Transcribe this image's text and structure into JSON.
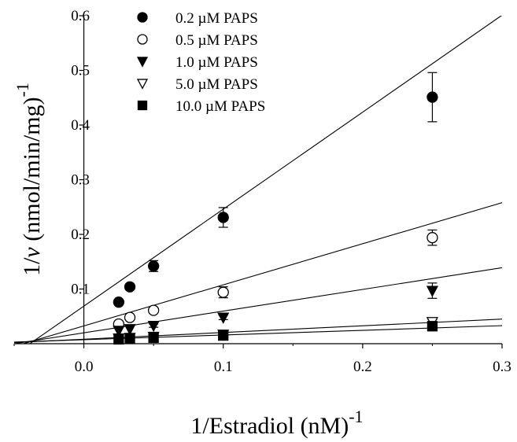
{
  "chart_data": {
    "type": "scatter",
    "title": "",
    "xlabel": {
      "text": "1/Estradiol (nM)",
      "superscript": "-1"
    },
    "ylabel": {
      "prefix": "1/",
      "italic": "v",
      "text": " (nmol/min/mg)",
      "superscript": "-1"
    },
    "xlim": [
      -0.05,
      0.3
    ],
    "ylim": [
      0,
      0.6
    ],
    "x_ticks": [
      0.0,
      0.1,
      0.2,
      0.3
    ],
    "x_tick_labels": [
      "0.0",
      "0.1",
      "0.2",
      "0.3"
    ],
    "y_ticks": [
      0.1,
      0.2,
      0.3,
      0.4,
      0.5,
      0.6
    ],
    "y_tick_labels": [
      "0.1",
      "0.2",
      "0.3",
      "0.4",
      "0.5",
      "0.6"
    ],
    "grid": false,
    "legend_position": "top-left",
    "series": [
      {
        "name": "0.2 µM PAPS",
        "marker": "circle",
        "filled": true,
        "x": [
          0.025,
          0.033,
          0.05,
          0.1,
          0.25
        ],
        "y": [
          0.076,
          0.104,
          0.142,
          0.231,
          0.451
        ],
        "yerr": [
          0.004,
          0.005,
          0.01,
          0.018,
          0.045
        ],
        "fit_line": {
          "x": [
            -0.05,
            0.3
          ],
          "y": [
            -0.02,
            0.601
          ]
        }
      },
      {
        "name": "0.5 µM PAPS",
        "marker": "circle",
        "filled": false,
        "x": [
          0.025,
          0.033,
          0.05,
          0.1,
          0.25
        ],
        "y": [
          0.036,
          0.048,
          0.061,
          0.094,
          0.194
        ],
        "yerr": [
          0.003,
          0.003,
          0.004,
          0.01,
          0.014
        ],
        "fit_line": {
          "x": [
            -0.05,
            0.3
          ],
          "y": [
            -0.005,
            0.258
          ]
        }
      },
      {
        "name": "1.0 µM PAPS",
        "marker": "triangle-down",
        "filled": true,
        "x": [
          0.025,
          0.033,
          0.05,
          0.1,
          0.25
        ],
        "y": [
          0.024,
          0.027,
          0.033,
          0.048,
          0.097
        ],
        "yerr": [
          0.002,
          0.002,
          0.003,
          0.004,
          0.014
        ],
        "fit_line": {
          "x": [
            -0.05,
            0.3
          ],
          "y": [
            0.0,
            0.139
          ]
        }
      },
      {
        "name": "5.0 µM PAPS",
        "marker": "triangle-down",
        "filled": false,
        "x": [
          0.025,
          0.033,
          0.05,
          0.1,
          0.25
        ],
        "y": [
          0.01,
          0.011,
          0.013,
          0.017,
          0.04
        ],
        "yerr": [
          0.001,
          0.001,
          0.001,
          0.002,
          0.004
        ],
        "fit_line": {
          "x": [
            -0.05,
            0.3
          ],
          "y": [
            0.002,
            0.045
          ]
        }
      },
      {
        "name": "10.0 µM PAPS",
        "marker": "square",
        "filled": true,
        "x": [
          0.025,
          0.033,
          0.05,
          0.1,
          0.25
        ],
        "y": [
          0.008,
          0.009,
          0.011,
          0.015,
          0.032
        ],
        "yerr": [
          0.001,
          0.001,
          0.001,
          0.002,
          0.003
        ],
        "fit_line": {
          "x": [
            -0.05,
            0.3
          ],
          "y": [
            0.003,
            0.033
          ]
        }
      }
    ]
  }
}
